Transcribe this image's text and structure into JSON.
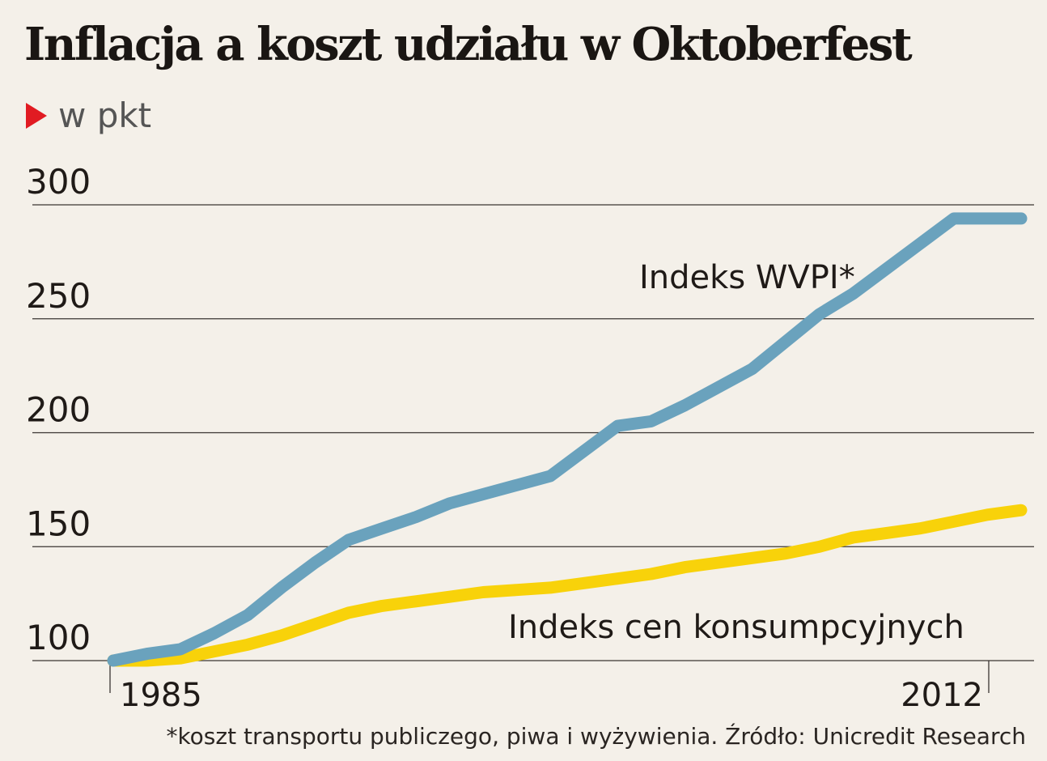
{
  "header": {
    "title": "Inflacja a koszt udziału w Oktoberfest",
    "subtitle": "w pkt"
  },
  "footnote": "*koszt transportu publiczego, piwa i wyżywienia. Źródło: Unicredit Research",
  "colors": {
    "background": "#f4f0e9",
    "wvpi": "#6aa2bd",
    "cpi": "#f8d20a",
    "accent": "#e11b22",
    "grid": "#3a3532"
  },
  "chart_data": {
    "type": "line",
    "title": "Inflacja a koszt udziału w Oktoberfest",
    "ylabel": "w pkt",
    "ylim": [
      100,
      300
    ],
    "yticks": [
      100,
      150,
      200,
      250,
      300
    ],
    "xlim": [
      1985,
      2012
    ],
    "xticks": [
      1985,
      2012
    ],
    "grid": true,
    "x": [
      1985,
      1986,
      1987,
      1988,
      1989,
      1990,
      1991,
      1992,
      1993,
      1994,
      1995,
      1996,
      1997,
      1998,
      1999,
      2000,
      2001,
      2002,
      2003,
      2004,
      2005,
      2006,
      2007,
      2008,
      2009,
      2010,
      2011,
      2012
    ],
    "series": [
      {
        "name": "Indeks WVPI*",
        "values": [
          100,
          103,
          105,
          112,
          120,
          132,
          143,
          153,
          158,
          163,
          169,
          173,
          177,
          181,
          192,
          203,
          205,
          212,
          220,
          228,
          240,
          252,
          261,
          272,
          283,
          294,
          294,
          294
        ],
        "color": "#6aa2bd"
      },
      {
        "name": "Indeks cen konsumpcyjnych",
        "values": [
          100,
          100,
          101,
          104,
          107,
          111,
          116,
          121,
          124,
          126,
          128,
          130,
          131,
          132,
          134,
          136,
          138,
          141,
          143,
          145,
          147,
          150,
          154,
          156,
          158,
          161,
          164,
          166
        ],
        "color": "#f8d20a"
      }
    ]
  }
}
